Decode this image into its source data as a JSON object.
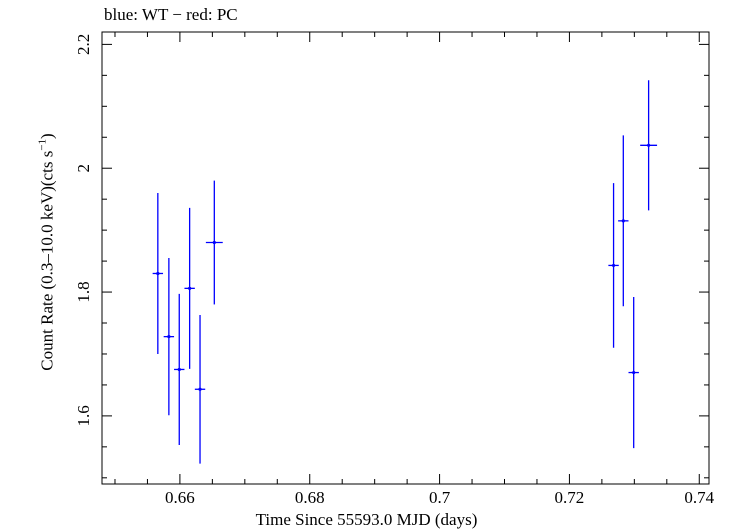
{
  "chart_data": {
    "type": "scatter",
    "title": "blue: WT − red: PC",
    "xlabel": "Time Since 55593.0 MJD (days)",
    "ylabel_main": "Count Rate (0.3–10.0 keV)(cts s",
    "ylabel_sup": "−1",
    "ylabel_end": ")",
    "xlim": [
      0.648,
      0.7415
    ],
    "ylim": [
      1.49,
      2.22
    ],
    "x_ticks": [
      0.66,
      0.68,
      0.7,
      0.72,
      0.74
    ],
    "x_tick_labels": [
      "0.66",
      "0.68",
      "0.7",
      "0.72",
      "0.74"
    ],
    "y_ticks": [
      1.6,
      1.8,
      2.0,
      2.2
    ],
    "y_tick_labels": [
      "1.6",
      "1.8",
      "2",
      "2.2"
    ],
    "series": [
      {
        "name": "WT",
        "color": "#0000ff",
        "points": [
          {
            "x": 0.6566,
            "xerr": 0.0008,
            "y": 1.83,
            "yerr": 0.13
          },
          {
            "x": 0.6583,
            "xerr": 0.0008,
            "y": 1.728,
            "yerr": 0.127
          },
          {
            "x": 0.6599,
            "xerr": 0.0008,
            "y": 1.675,
            "yerr": 0.122
          },
          {
            "x": 0.6615,
            "xerr": 0.0008,
            "y": 1.806,
            "yerr": 0.13
          },
          {
            "x": 0.6631,
            "xerr": 0.0008,
            "y": 1.643,
            "yerr": 0.12
          },
          {
            "x": 0.6653,
            "xerr": 0.0013,
            "y": 1.88,
            "yerr": 0.1
          },
          {
            "x": 0.7268,
            "xerr": 0.0008,
            "y": 1.843,
            "yerr": 0.133
          },
          {
            "x": 0.7283,
            "xerr": 0.0008,
            "y": 1.915,
            "yerr": 0.138
          },
          {
            "x": 0.7299,
            "xerr": 0.0008,
            "y": 1.67,
            "yerr": 0.122
          },
          {
            "x": 0.7322,
            "xerr": 0.0013,
            "y": 2.037,
            "yerr": 0.105
          }
        ]
      }
    ]
  }
}
